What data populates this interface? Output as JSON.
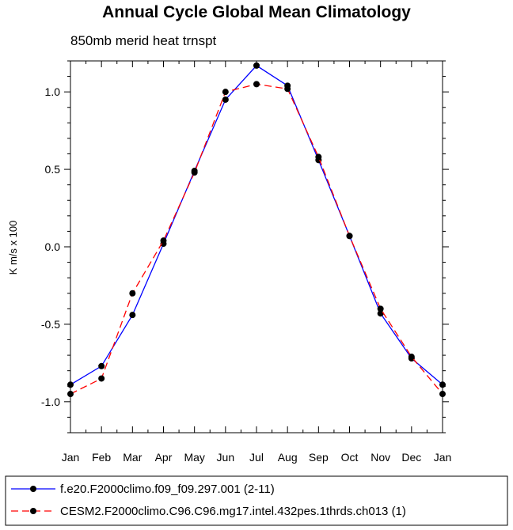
{
  "chart_data": {
    "type": "line",
    "title": "Annual Cycle Global Mean Climatology",
    "subtitle": "850mb merid heat trnspt",
    "xlabel": "",
    "ylabel": "K m/s x 100",
    "categories": [
      "Jan",
      "Feb",
      "Mar",
      "Apr",
      "May",
      "Jun",
      "Jul",
      "Aug",
      "Sep",
      "Oct",
      "Nov",
      "Dec",
      "Jan"
    ],
    "ylim": [
      -1.2,
      1.2
    ],
    "yticks": [
      -1.0,
      -0.5,
      0.0,
      0.5,
      1.0
    ],
    "ytick_labels": [
      "-1.0",
      "-0.5",
      "0.0",
      "0.5",
      "1.0"
    ],
    "series": [
      {
        "name": "f.e20.F2000climo.f09_f09.297.001 (2-11)",
        "color": "#0000ff",
        "dash": "solid",
        "values": [
          -0.89,
          -0.77,
          -0.44,
          0.02,
          0.49,
          0.95,
          1.17,
          1.04,
          0.56,
          0.07,
          -0.43,
          -0.72,
          -0.89
        ]
      },
      {
        "name": "CESM2.F2000climo.C96.C96.mg17.intel.432pes.1thrds.ch013 (1)",
        "color": "#ff0000",
        "dash": "dashed",
        "values": [
          -0.95,
          -0.85,
          -0.3,
          0.04,
          0.48,
          1.0,
          1.05,
          1.02,
          0.58,
          0.07,
          -0.4,
          -0.71,
          -0.95
        ]
      }
    ],
    "legend_position": "bottom",
    "grid": false
  }
}
